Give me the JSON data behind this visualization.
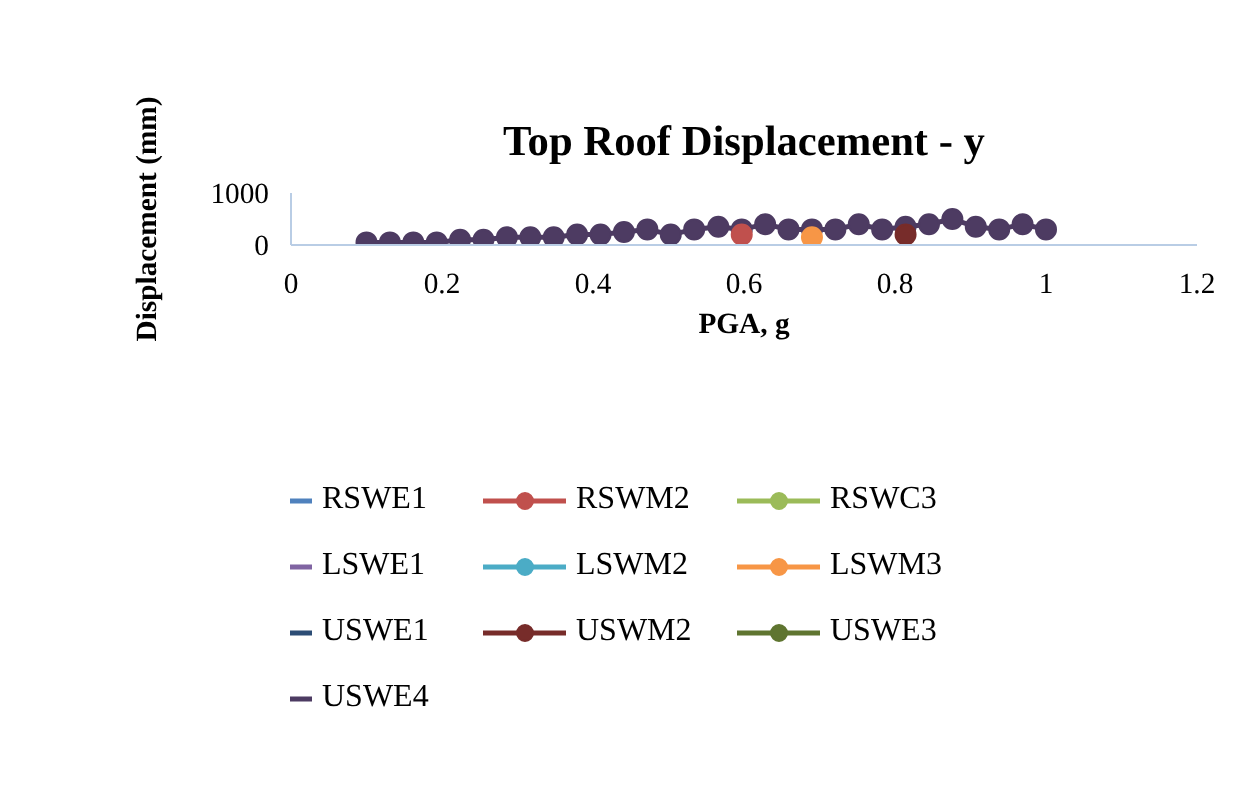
{
  "chart_data": {
    "type": "line",
    "title": "Top Roof Displacement - y",
    "xlabel": "PGA, g",
    "ylabel": "Displacement (mm)",
    "xlim": [
      0,
      1.2
    ],
    "xticks": [
      0,
      0.2,
      0.4,
      0.6,
      0.8,
      1,
      1.2
    ],
    "ylim": [
      0,
      1000
    ],
    "yticks": [
      0,
      1000
    ],
    "grid": false,
    "legend": "bottom",
    "marker": "circle",
    "line_style": "solid",
    "x": [
      0.1,
      0.131,
      0.162,
      0.193,
      0.224,
      0.255,
      0.286,
      0.317,
      0.348,
      0.379,
      0.41,
      0.441,
      0.472,
      0.503,
      0.534,
      0.566,
      0.597,
      0.628,
      0.659,
      0.69,
      0.721,
      0.752,
      0.783,
      0.814,
      0.845,
      0.876,
      0.907,
      0.938,
      0.969,
      1.0
    ],
    "series": [
      {
        "name": "RSWE1",
        "color": "#4f81bd",
        "values": [
          null,
          null,
          null,
          null,
          null,
          null,
          null,
          null,
          null,
          null,
          null,
          null,
          null,
          null,
          null,
          null,
          null,
          null,
          null,
          null,
          null,
          null,
          null,
          null,
          null,
          null,
          null,
          null,
          null,
          null
        ]
      },
      {
        "name": "RSWM2",
        "color": "#c0504d",
        "values": [
          null,
          null,
          null,
          null,
          null,
          null,
          null,
          null,
          null,
          null,
          null,
          null,
          null,
          null,
          null,
          null,
          200,
          null,
          null,
          null,
          null,
          null,
          null,
          null,
          null,
          null,
          null,
          null,
          null,
          null
        ]
      },
      {
        "name": "RSWC3",
        "color": "#9bbb59",
        "values": [
          null,
          null,
          null,
          null,
          null,
          null,
          null,
          null,
          null,
          null,
          null,
          null,
          null,
          null,
          null,
          null,
          null,
          null,
          null,
          null,
          null,
          null,
          null,
          null,
          null,
          null,
          null,
          null,
          null,
          null
        ]
      },
      {
        "name": "LSWE1",
        "color": "#8064a2",
        "values": [
          null,
          null,
          null,
          null,
          null,
          null,
          null,
          null,
          null,
          null,
          null,
          null,
          null,
          null,
          null,
          null,
          null,
          null,
          null,
          null,
          null,
          null,
          null,
          null,
          null,
          null,
          null,
          null,
          null,
          null
        ]
      },
      {
        "name": "LSWM2",
        "color": "#4bacc6",
        "values": [
          null,
          null,
          null,
          null,
          null,
          null,
          null,
          null,
          null,
          null,
          null,
          null,
          null,
          null,
          null,
          null,
          null,
          null,
          null,
          null,
          null,
          null,
          null,
          null,
          null,
          null,
          null,
          null,
          null,
          null
        ]
      },
      {
        "name": "LSWM3",
        "color": "#f79646",
        "values": [
          null,
          null,
          null,
          null,
          null,
          null,
          null,
          null,
          null,
          null,
          null,
          null,
          null,
          null,
          null,
          null,
          null,
          null,
          null,
          150,
          null,
          null,
          null,
          null,
          null,
          null,
          null,
          null,
          null,
          null
        ]
      },
      {
        "name": "USWE1",
        "color": "#2c4d75",
        "values": [
          null,
          null,
          null,
          null,
          null,
          null,
          null,
          null,
          null,
          null,
          null,
          null,
          null,
          null,
          null,
          null,
          null,
          null,
          null,
          null,
          null,
          null,
          null,
          null,
          null,
          null,
          null,
          null,
          null,
          null
        ]
      },
      {
        "name": "USWM2",
        "color": "#772c2a",
        "values": [
          null,
          null,
          null,
          null,
          null,
          null,
          null,
          null,
          null,
          null,
          null,
          null,
          null,
          null,
          null,
          null,
          null,
          null,
          null,
          null,
          null,
          null,
          null,
          200,
          null,
          null,
          null,
          null,
          null,
          null
        ]
      },
      {
        "name": "USWE3",
        "color": "#5f7530",
        "values": [
          null,
          null,
          null,
          null,
          null,
          null,
          null,
          null,
          null,
          null,
          null,
          null,
          null,
          null,
          null,
          null,
          null,
          null,
          null,
          null,
          null,
          null,
          null,
          null,
          null,
          null,
          null,
          null,
          null,
          null
        ]
      },
      {
        "name": "USWE4",
        "color": "#4d3b62",
        "values": [
          50,
          50,
          50,
          50,
          100,
          100,
          150,
          150,
          150,
          200,
          200,
          250,
          300,
          200,
          300,
          350,
          300,
          400,
          300,
          300,
          300,
          400,
          300,
          350,
          400,
          500,
          350,
          300,
          400,
          300
        ]
      }
    ]
  }
}
